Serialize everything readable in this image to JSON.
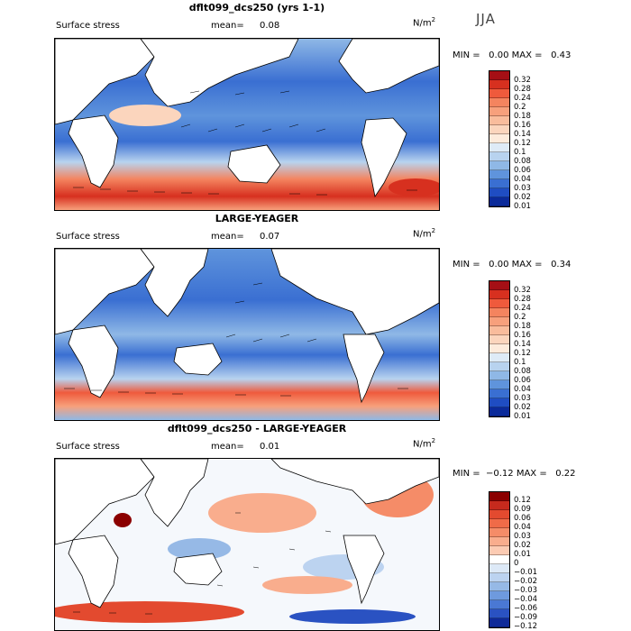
{
  "season": "JJA",
  "units": "N/m",
  "units_exp": "2",
  "panels": [
    {
      "title": "dflt099_dcs250 (yrs 1-1)",
      "field": "Surface stress",
      "mean_label": "mean=",
      "mean": "0.08",
      "min_label": "MIN =",
      "min": "0.00",
      "max_label": "MAX =",
      "max": "0.43",
      "levels": [
        "0.32",
        "0.28",
        "0.24",
        "0.2",
        "0.18",
        "0.16",
        "0.14",
        "0.12",
        "0.1",
        "0.08",
        "0.06",
        "0.04",
        "0.03",
        "0.02",
        "0.01"
      ],
      "colors": [
        "#a50f15",
        "#d7301f",
        "#ef5a3c",
        "#f4845f",
        "#f7a07c",
        "#f9bc9c",
        "#fbd5bd",
        "#fdebdc",
        "#deebf7",
        "#b8d3ef",
        "#8fb8e6",
        "#5f94dc",
        "#3a6fd2",
        "#1f4dc2",
        "#0b2a9a"
      ]
    },
    {
      "title": "LARGE-YEAGER",
      "field": "Surface stress",
      "mean_label": "mean=",
      "mean": "0.07",
      "min_label": "MIN =",
      "min": "0.00",
      "max_label": "MAX =",
      "max": "0.34",
      "levels": [
        "0.32",
        "0.28",
        "0.24",
        "0.2",
        "0.18",
        "0.16",
        "0.14",
        "0.12",
        "0.1",
        "0.08",
        "0.06",
        "0.04",
        "0.03",
        "0.02",
        "0.01"
      ],
      "colors": [
        "#a50f15",
        "#d7301f",
        "#ef5a3c",
        "#f4845f",
        "#f7a07c",
        "#f9bc9c",
        "#fbd5bd",
        "#fdebdc",
        "#deebf7",
        "#b8d3ef",
        "#8fb8e6",
        "#5f94dc",
        "#3a6fd2",
        "#1f4dc2",
        "#0b2a9a"
      ]
    },
    {
      "title": "dflt099_dcs250 - LARGE-YEAGER",
      "field": "Surface stress",
      "mean_label": "mean=",
      "mean": "0.01",
      "min_label": "MIN =",
      "min": "−0.12",
      "max_label": "MAX =",
      "max": "0.22",
      "levels": [
        "0.12",
        "0.09",
        "0.06",
        "0.04",
        "0.03",
        "0.02",
        "0.01",
        "0",
        "−0.01",
        "−0.02",
        "−0.03",
        "−0.04",
        "−0.06",
        "−0.09",
        "−0.12"
      ],
      "colors": [
        "#8b0000",
        "#c62a1d",
        "#e34a2f",
        "#f06b48",
        "#f58c68",
        "#f9ad8d",
        "#fccbb3",
        "#ffffff",
        "#dde9f7",
        "#bcd3f0",
        "#96b9e6",
        "#6e9ade",
        "#4a78d4",
        "#2a52c2",
        "#0f2a99"
      ]
    }
  ]
}
